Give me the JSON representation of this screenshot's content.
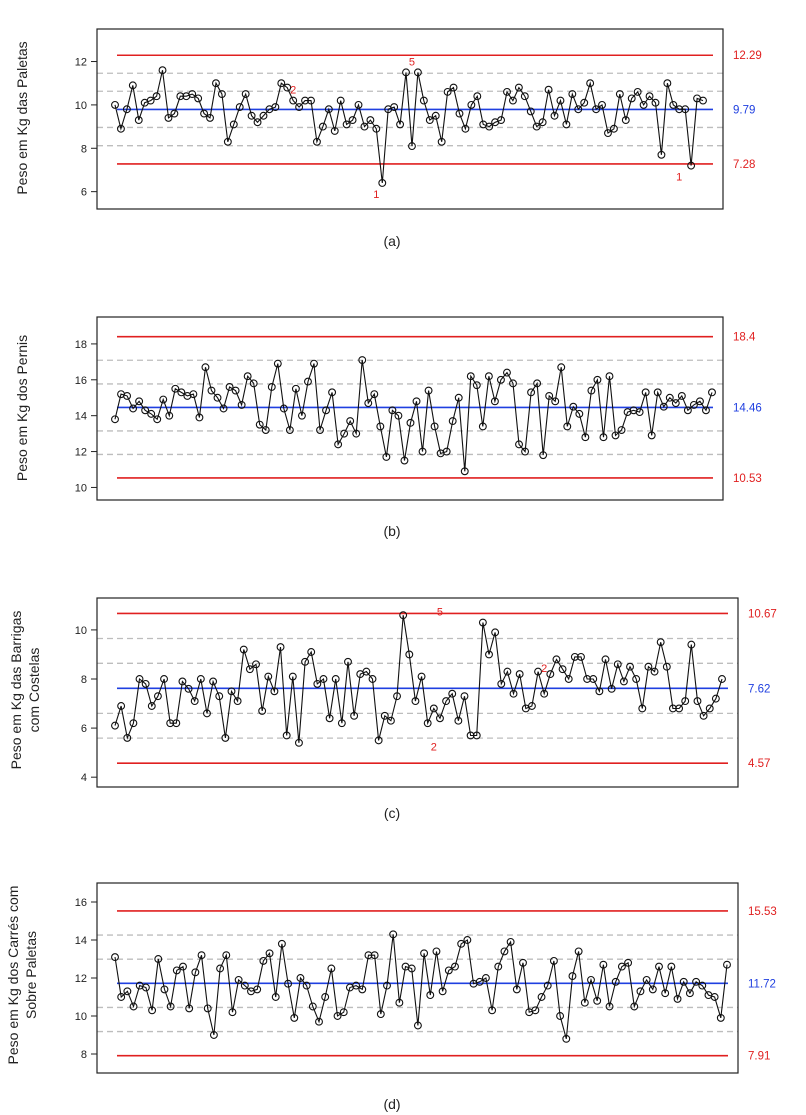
{
  "chart_data": [
    {
      "type": "line",
      "panel_label": "(a)",
      "ylabel": [
        "Peso em Kg das Paletas"
      ],
      "ylim": [
        5.2,
        13.5
      ],
      "yticks": [
        6,
        8,
        10,
        12
      ],
      "center_line": {
        "value": 9.79,
        "label": "9.79",
        "color": "#1f3fe0"
      },
      "control_limits": [
        {
          "value": 12.29,
          "label": "12.29",
          "color": "#e02020"
        },
        {
          "value": 7.28,
          "label": "7.28",
          "color": "#e02020"
        }
      ],
      "zone_lines": [
        11.46,
        10.63,
        8.96,
        8.12
      ],
      "annotations": [
        {
          "x": 30,
          "y": 10.2,
          "text": "2",
          "position": "above"
        },
        {
          "x": 44,
          "y": 6.4,
          "text": "1",
          "position": "below"
        },
        {
          "x": 50,
          "y": 11.5,
          "text": "5",
          "position": "above"
        },
        {
          "x": 95,
          "y": 7.2,
          "text": "1",
          "position": "below"
        }
      ],
      "values": [
        10.0,
        8.9,
        9.8,
        10.9,
        9.3,
        10.1,
        10.2,
        10.4,
        11.6,
        9.4,
        9.6,
        10.4,
        10.4,
        10.5,
        10.3,
        9.6,
        9.4,
        11.0,
        10.5,
        8.3,
        9.1,
        9.9,
        10.5,
        9.5,
        9.2,
        9.5,
        9.8,
        9.9,
        11.0,
        10.8,
        10.2,
        9.9,
        10.2,
        10.2,
        8.3,
        9.0,
        9.8,
        8.8,
        10.2,
        9.1,
        9.3,
        10.0,
        9.0,
        9.3,
        8.9,
        6.4,
        9.8,
        9.9,
        9.1,
        11.5,
        8.1,
        11.5,
        10.2,
        9.3,
        9.5,
        8.3,
        10.6,
        10.8,
        9.6,
        8.9,
        10.0,
        10.4,
        9.1,
        9.0,
        9.2,
        9.3,
        10.6,
        10.2,
        10.8,
        10.4,
        9.7,
        9.0,
        9.2,
        10.7,
        9.5,
        10.2,
        9.1,
        10.5,
        9.8,
        10.1,
        11.0,
        9.8,
        10.0,
        8.7,
        8.9,
        10.5,
        9.3,
        10.3,
        10.6,
        10.0,
        10.4,
        10.1,
        7.7,
        11.0,
        10.0,
        9.8,
        9.8,
        7.2,
        10.3,
        10.2
      ]
    },
    {
      "type": "line",
      "panel_label": "(b)",
      "ylabel": [
        "Peso em Kg dos Pernis"
      ],
      "ylim": [
        9.3,
        19.5
      ],
      "yticks": [
        10,
        12,
        14,
        16,
        18
      ],
      "center_line": {
        "value": 14.46,
        "label": "14.46",
        "color": "#1f3fe0"
      },
      "control_limits": [
        {
          "value": 18.4,
          "label": "18.4",
          "color": "#e02020"
        },
        {
          "value": 10.53,
          "label": "10.53",
          "color": "#e02020"
        }
      ],
      "zone_lines": [
        17.09,
        15.77,
        13.15,
        11.84
      ],
      "annotations": [],
      "values": [
        13.8,
        15.2,
        15.1,
        14.4,
        14.8,
        14.3,
        14.1,
        13.8,
        14.9,
        14.0,
        15.5,
        15.3,
        15.1,
        15.2,
        13.9,
        16.7,
        15.4,
        15.0,
        14.4,
        15.6,
        15.4,
        14.6,
        16.2,
        15.8,
        13.5,
        13.2,
        15.6,
        16.9,
        14.4,
        13.2,
        15.5,
        14.0,
        15.9,
        16.9,
        13.2,
        14.3,
        15.3,
        12.4,
        13.0,
        13.7,
        13.0,
        17.1,
        14.7,
        15.2,
        13.4,
        11.7,
        14.3,
        14.0,
        11.5,
        13.6,
        14.8,
        12.0,
        15.4,
        13.4,
        11.9,
        12.0,
        13.7,
        15.0,
        10.9,
        16.2,
        15.7,
        13.4,
        16.2,
        14.8,
        16.0,
        16.4,
        15.8,
        12.4,
        12.0,
        15.3,
        15.8,
        11.8,
        15.1,
        14.8,
        16.7,
        13.4,
        14.5,
        14.1,
        12.8,
        15.4,
        16.0,
        12.8,
        16.2,
        12.9,
        13.2,
        14.2,
        14.3,
        14.2,
        15.3,
        12.9,
        15.3,
        14.5,
        15.0,
        14.7,
        15.1,
        14.3,
        14.6,
        14.8,
        14.3,
        15.3
      ]
    },
    {
      "type": "line",
      "panel_label": "(c)",
      "ylabel": [
        "Peso em Kg das Barrigas",
        "com Costelas"
      ],
      "ylim": [
        3.6,
        11.3
      ],
      "yticks": [
        4,
        6,
        8,
        10
      ],
      "center_line": {
        "value": 7.62,
        "label": "7.62",
        "color": "#1f3fe0"
      },
      "control_limits": [
        {
          "value": 10.67,
          "label": "10.67",
          "color": "#e02020"
        },
        {
          "value": 4.57,
          "label": "4.57",
          "color": "#e02020"
        }
      ],
      "zone_lines": [
        9.65,
        8.64,
        6.6,
        5.59
      ],
      "annotations": [
        {
          "x": 52,
          "y": 5.7,
          "text": "2",
          "position": "below"
        },
        {
          "x": 53,
          "y": 10.3,
          "text": "5",
          "position": "above"
        },
        {
          "x": 70,
          "y": 8.0,
          "text": "2",
          "position": "above"
        }
      ],
      "values": [
        6.1,
        6.9,
        5.6,
        6.2,
        8.0,
        7.8,
        6.9,
        7.3,
        8.0,
        6.2,
        6.2,
        7.9,
        7.6,
        7.1,
        8.0,
        6.6,
        7.9,
        7.3,
        5.6,
        7.5,
        7.1,
        9.2,
        8.4,
        8.6,
        6.7,
        8.1,
        7.5,
        9.3,
        5.7,
        8.1,
        5.4,
        8.7,
        9.1,
        7.8,
        8.0,
        6.4,
        8.0,
        6.2,
        8.7,
        6.5,
        8.2,
        8.3,
        8.0,
        5.5,
        6.5,
        6.3,
        7.3,
        10.6,
        9.0,
        7.1,
        8.1,
        6.2,
        6.8,
        6.4,
        7.1,
        7.4,
        6.3,
        7.3,
        5.7,
        5.7,
        10.3,
        9.0,
        9.9,
        7.8,
        8.3,
        7.4,
        8.2,
        6.8,
        6.9,
        8.3,
        7.4,
        8.2,
        8.8,
        8.4,
        8.0,
        8.9,
        8.9,
        8.0,
        8.0,
        7.5,
        8.8,
        7.6,
        8.6,
        7.9,
        8.5,
        8.0,
        6.8,
        8.5,
        8.3,
        9.5,
        8.5,
        6.8,
        6.8,
        7.1,
        9.4,
        7.1,
        6.5,
        6.8,
        7.2,
        8.0
      ]
    },
    {
      "type": "line",
      "panel_label": "(d)",
      "ylabel": [
        "Peso em Kg dos Carrés com",
        "Sobre Paletas"
      ],
      "ylim": [
        7.0,
        17.0
      ],
      "yticks": [
        8,
        10,
        12,
        14,
        16
      ],
      "center_line": {
        "value": 11.72,
        "label": "11.72",
        "color": "#1f3fe0"
      },
      "control_limits": [
        {
          "value": 15.53,
          "label": "15.53",
          "color": "#e02020"
        },
        {
          "value": 7.91,
          "label": "7.91",
          "color": "#e02020"
        }
      ],
      "zone_lines": [
        14.26,
        12.99,
        10.45,
        9.18
      ],
      "annotations": [],
      "values": [
        13.1,
        11.0,
        11.3,
        10.5,
        11.6,
        11.5,
        10.3,
        13.0,
        11.4,
        10.5,
        12.4,
        12.6,
        10.4,
        12.3,
        13.2,
        10.4,
        9.0,
        12.5,
        13.2,
        10.2,
        11.9,
        11.6,
        11.3,
        11.4,
        12.9,
        13.3,
        11.0,
        13.8,
        11.7,
        9.9,
        12.0,
        11.6,
        10.5,
        9.7,
        11.0,
        12.5,
        10.0,
        10.2,
        11.5,
        11.6,
        11.4,
        13.2,
        13.2,
        10.1,
        11.6,
        14.3,
        10.7,
        12.6,
        12.5,
        9.5,
        13.3,
        11.1,
        13.4,
        11.3,
        12.4,
        12.6,
        13.8,
        14.0,
        11.7,
        11.8,
        12.0,
        10.3,
        12.6,
        13.4,
        13.9,
        11.4,
        12.8,
        10.2,
        10.3,
        11.0,
        11.6,
        12.9,
        10.0,
        8.8,
        12.1,
        13.4,
        10.7,
        11.9,
        10.8,
        12.7,
        10.5,
        11.8,
        12.6,
        12.8,
        10.5,
        11.3,
        11.9,
        11.4,
        12.6,
        11.2,
        12.6,
        10.9,
        11.8,
        11.2,
        11.8,
        11.6,
        11.1,
        11.0,
        9.9,
        12.7
      ]
    }
  ]
}
